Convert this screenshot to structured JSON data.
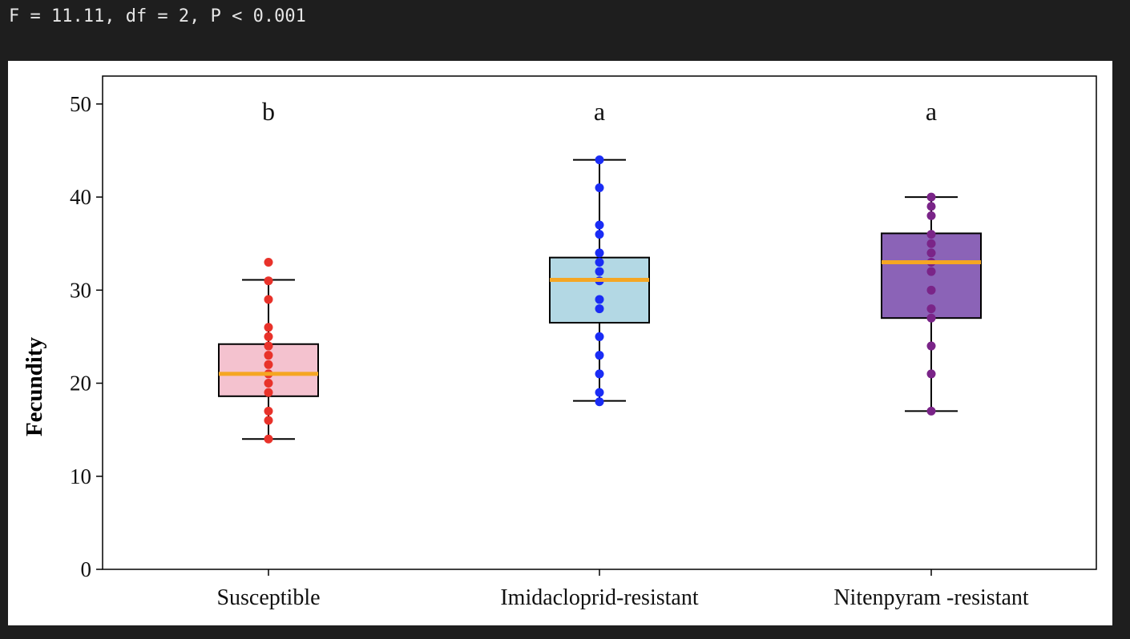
{
  "console": {
    "stats_text": "F = 11.11, df = 2, P < 0.001"
  },
  "chart_data": {
    "type": "box",
    "title": "",
    "xlabel": "",
    "ylabel": "Fecundity",
    "ylim": [
      0,
      53
    ],
    "yticks": [
      0,
      10,
      20,
      30,
      40,
      50
    ],
    "grid": false,
    "categories": [
      "Susceptible",
      "Imidacloprid-resistant",
      "Nitenpyram -resistant"
    ],
    "groups": [
      {
        "label": "Susceptible",
        "letter": "b",
        "box_fill": "#f4c2cf",
        "point_color": "#e8322a",
        "median_color": "#f5a623",
        "whisker_low": 14,
        "q1": 18.6,
        "median": 21,
        "q3": 24.2,
        "whisker_high": 31.1,
        "points": [
          14,
          16,
          17,
          19,
          20,
          21,
          22,
          23,
          24,
          25,
          26,
          29,
          31,
          33
        ]
      },
      {
        "label": "Imidacloprid-resistant",
        "letter": "a",
        "box_fill": "#b3d8e4",
        "point_color": "#1a2cf5",
        "median_color": "#f5a623",
        "whisker_low": 18.1,
        "q1": 26.5,
        "median": 31.1,
        "q3": 33.5,
        "whisker_high": 44,
        "points": [
          18,
          19,
          21,
          23,
          25,
          28,
          29,
          31,
          32,
          33,
          34,
          36,
          37,
          41,
          44
        ]
      },
      {
        "label": "Nitenpyram -resistant",
        "letter": "a",
        "box_fill": "#8b63b7",
        "point_color": "#7a2488",
        "median_color": "#f5a623",
        "whisker_low": 17,
        "q1": 27,
        "median": 33,
        "q3": 36.1,
        "whisker_high": 40,
        "points": [
          17,
          21,
          24,
          27,
          28,
          30,
          32,
          33,
          34,
          35,
          36,
          38,
          39,
          40
        ]
      }
    ]
  }
}
